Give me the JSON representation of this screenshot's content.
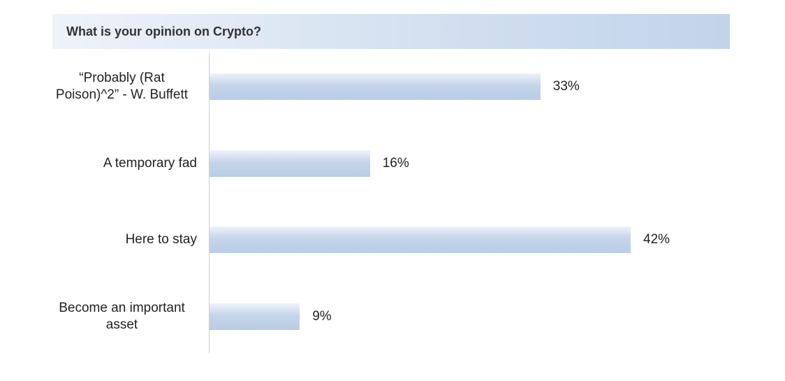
{
  "chart_data": {
    "type": "bar",
    "orientation": "horizontal",
    "title": "What is your opinion on Crypto?",
    "categories": [
      "“Probably (Rat Poison)^2” - W. Buffett",
      "A temporary fad",
      "Here to stay",
      "Become an important asset"
    ],
    "values": [
      33,
      16,
      42,
      9
    ],
    "value_labels": [
      "33%",
      "16%",
      "42%",
      "9%"
    ],
    "color": "#c5d5ea"
  }
}
